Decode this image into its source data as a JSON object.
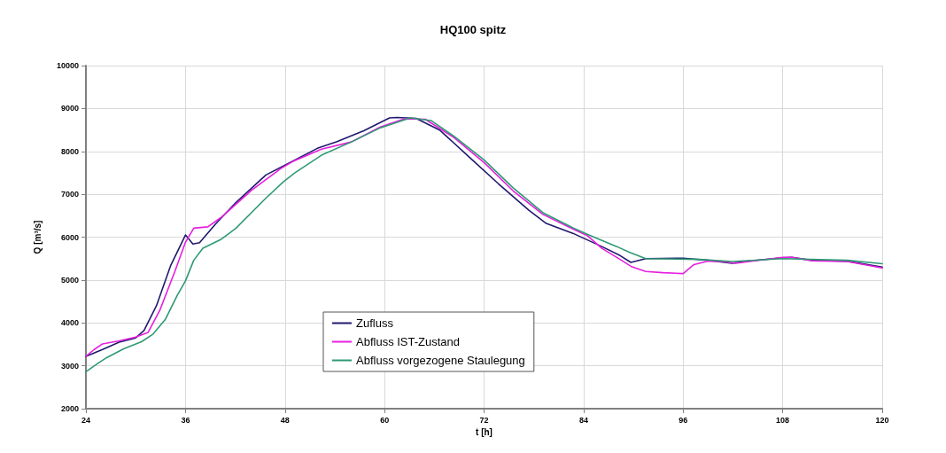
{
  "chart_data": {
    "type": "line",
    "title": "HQ100 spitz",
    "xlabel": "t [h]",
    "ylabel": "Q [m³/s]",
    "xlim": [
      24,
      120
    ],
    "xticks": [
      24,
      36,
      48,
      60,
      72,
      84,
      96,
      108,
      120
    ],
    "ylim": [
      2000,
      10000
    ],
    "yticks": [
      2000,
      3000,
      4000,
      5000,
      6000,
      7000,
      8000,
      9000,
      10000
    ],
    "grid": true,
    "legend": "bottom",
    "marker": "none",
    "line_style": "solid",
    "series": [
      {
        "name": "Zufluss",
        "color": "#1f1a6e",
        "x": [
          24,
          26,
          28,
          30,
          31,
          32.5,
          34.2,
          36,
          36.9,
          37.7,
          39.6,
          42.1,
          45.7,
          49.2,
          51.9,
          54.2,
          57.5,
          60.6,
          61.5,
          63.8,
          66.7,
          70.2,
          73.7,
          77.4,
          79.5,
          82.7,
          86.2,
          88.4,
          89.7,
          91.5,
          96,
          99,
          101.9,
          103.3,
          108,
          109.1,
          111.5,
          115.8,
          120
        ],
        "values": [
          3220,
          3380,
          3550,
          3650,
          3820,
          4400,
          5330,
          6050,
          5840,
          5870,
          6300,
          6810,
          7450,
          7800,
          8070,
          8220,
          8480,
          8780,
          8790,
          8770,
          8490,
          7870,
          7250,
          6630,
          6320,
          6090,
          5780,
          5570,
          5410,
          5500,
          5510,
          5460,
          5390,
          5430,
          5520,
          5530,
          5460,
          5440,
          5300
        ]
      },
      {
        "name": "Abfluss IST-Zustand",
        "color": "#e61ee0",
        "x": [
          24,
          25,
          26,
          28,
          30,
          31.5,
          32.9,
          34.7,
          36,
          37,
          38.7,
          40.3,
          44,
          47.5,
          48.9,
          52.4,
          56,
          59.5,
          62.4,
          64.9,
          68.4,
          72,
          75.5,
          79.1,
          82.7,
          84.5,
          86.2,
          88.4,
          89.7,
          91.5,
          93.6,
          96,
          97.3,
          99,
          100.8,
          102.3,
          108,
          109.1,
          111.5,
          115.8,
          120
        ],
        "values": [
          3220,
          3380,
          3510,
          3580,
          3670,
          3780,
          4290,
          5190,
          5880,
          6210,
          6240,
          6460,
          7100,
          7600,
          7760,
          8050,
          8220,
          8570,
          8760,
          8750,
          8320,
          7740,
          7080,
          6530,
          6190,
          6030,
          5740,
          5480,
          5320,
          5200,
          5170,
          5150,
          5360,
          5440,
          5430,
          5390,
          5530,
          5530,
          5450,
          5430,
          5280
        ]
      },
      {
        "name": "Abfluss vorgezogene Staulegung",
        "color": "#2e9a74",
        "x": [
          24,
          25.4,
          26.5,
          28.6,
          30.7,
          32.1,
          33.6,
          35,
          36,
          37,
          38.1,
          40.3,
          42.1,
          45.7,
          47.8,
          49.2,
          52.4,
          56,
          59.5,
          63.1,
          65.6,
          68.4,
          72,
          75.5,
          79.1,
          82.7,
          84.5,
          88,
          89.5,
          91.5,
          98,
          101.9,
          108,
          115.8,
          120
        ],
        "values": [
          2860,
          3050,
          3190,
          3400,
          3560,
          3740,
          4090,
          4640,
          4980,
          5460,
          5740,
          5950,
          6210,
          6910,
          7290,
          7500,
          7910,
          8220,
          8550,
          8780,
          8720,
          8350,
          7800,
          7150,
          6570,
          6220,
          6060,
          5780,
          5650,
          5500,
          5480,
          5430,
          5500,
          5460,
          5380
        ]
      }
    ]
  }
}
